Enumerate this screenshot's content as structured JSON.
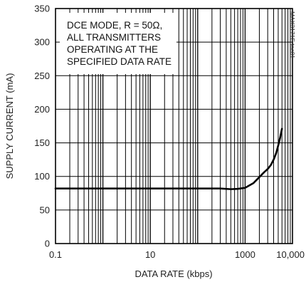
{
  "chart_data": {
    "type": "line",
    "title": "",
    "xlabel": "DATA RATE (kbps)",
    "ylabel": "SUPPLY CURRENT (mA)",
    "xscale": "log",
    "xlim": [
      0.1,
      10000
    ],
    "ylim": [
      0,
      350
    ],
    "x_ticks": [
      0.1,
      10,
      1000,
      10000
    ],
    "x_tick_labels": [
      "0.1",
      "10",
      "1000",
      "10,000"
    ],
    "y_ticks": [
      0,
      50,
      100,
      150,
      200,
      250,
      300,
      350
    ],
    "y_tick_labels": [
      "0",
      "50",
      "100",
      "150",
      "200",
      "250",
      "300",
      "350"
    ],
    "grid": true,
    "annotation_lines": [
      "DCE MODE, R = 50Ω,",
      "ALL TRANSMITTERS",
      "OPERATING AT THE",
      "SPECIFIED DATA RATE"
    ],
    "watermark": "MAX3171E toc01",
    "series": [
      {
        "x": [
          0.1,
          1,
          10,
          100,
          300,
          500,
          700,
          1000,
          1500,
          2000,
          2500,
          3000,
          3500,
          4000,
          4500,
          5000,
          5500,
          6000
        ],
        "y": [
          82,
          82,
          82,
          82,
          82,
          81,
          81.5,
          83,
          90,
          99,
          106,
          111,
          117,
          125,
          134,
          146,
          158,
          171
        ]
      }
    ]
  }
}
